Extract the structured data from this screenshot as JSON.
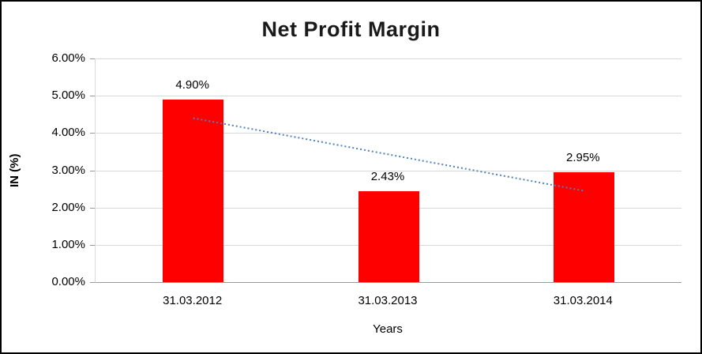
{
  "chart_data": {
    "type": "bar",
    "title": "Net Profit Margin",
    "categories": [
      "31.03.2012",
      "31.03.2013",
      "31.03.2014"
    ],
    "values": [
      4.9,
      2.43,
      2.95
    ],
    "bar_labels": [
      "4.90%",
      "2.43%",
      "2.95%"
    ],
    "xlabel": "Years",
    "ylabel": "IN (%)",
    "ylim": [
      0,
      6
    ],
    "ytick_step": 1,
    "ytick_labels": [
      "0.00%",
      "1.00%",
      "2.00%",
      "3.00%",
      "4.00%",
      "5.00%",
      "6.00%"
    ],
    "bar_color": "#ff0000",
    "grid": true,
    "legend": "none",
    "trendline": {
      "start": 4.4,
      "end": 2.45,
      "color": "#4f81bd",
      "style": "dotted"
    }
  }
}
